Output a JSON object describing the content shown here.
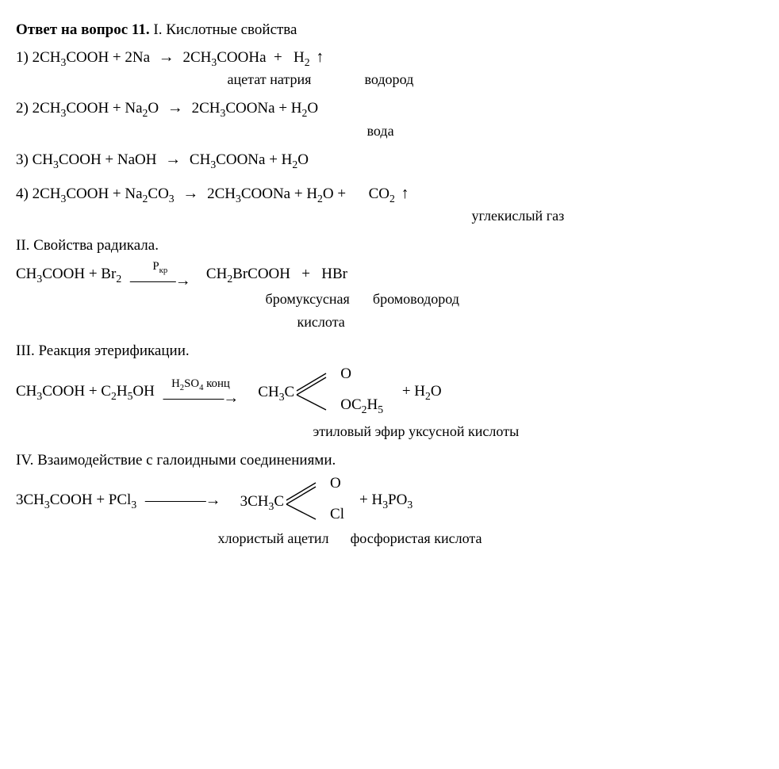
{
  "title": "Ответ на вопрос 11.",
  "sec1_title": "I. Кислотные свойства",
  "r1": {
    "lhs": "2CH₃COOH + 2Na",
    "rhs1": "2CH₃COOHa",
    "rhs2": "H₂",
    "ann1": "ацетат натрия",
    "ann2": "водород"
  },
  "r2": {
    "lhs": "2CH₃COOH + Na₂O",
    "rhs": "2CH₃COONa + H₂O",
    "ann": "вода"
  },
  "r3": {
    "lhs": "CH₃COOH + NaOH",
    "rhs": "CH₃COONa + H₂O"
  },
  "r4": {
    "lhs": "2CH₃COOH + Na₂CO₃",
    "rhs1": "2CH₃COONa + H₂O +",
    "rhs2": "CO₂",
    "ann": "углекислый газ"
  },
  "sec2_title": "II. Свойства радикала.",
  "r5": {
    "lhs": "CH₃COOH  +  Br₂",
    "cond": "Pкр",
    "rhs1": "CH₂BrCOOH",
    "rhs2": "HBr",
    "ann1_a": "бромуксусная",
    "ann1_b": "кислота",
    "ann2": "бромоводород"
  },
  "sec3_title": "III. Реакция этерификации.",
  "r6": {
    "lhs": "CH₃COOH  +  C₂H₅OH",
    "cond": "H₂SO₄ конц",
    "prod_left": "CH₃C",
    "prod_top": "O",
    "prod_bot": "OC₂H₅",
    "rhs_tail": "+    H₂O",
    "ann": "этиловый эфир уксусной кислоты"
  },
  "sec4_title": "IV. Взаимодействие с галоидными соединениями.",
  "r7": {
    "lhs": "3CH₃COOH  +  PCl₃",
    "prod_left": "3CH₃C",
    "prod_top": "O",
    "prod_bot": "Cl",
    "rhs_tail": "+  H₃PO₃",
    "ann1": "хлористый ацетил",
    "ann2": "фосфористая кислота"
  }
}
